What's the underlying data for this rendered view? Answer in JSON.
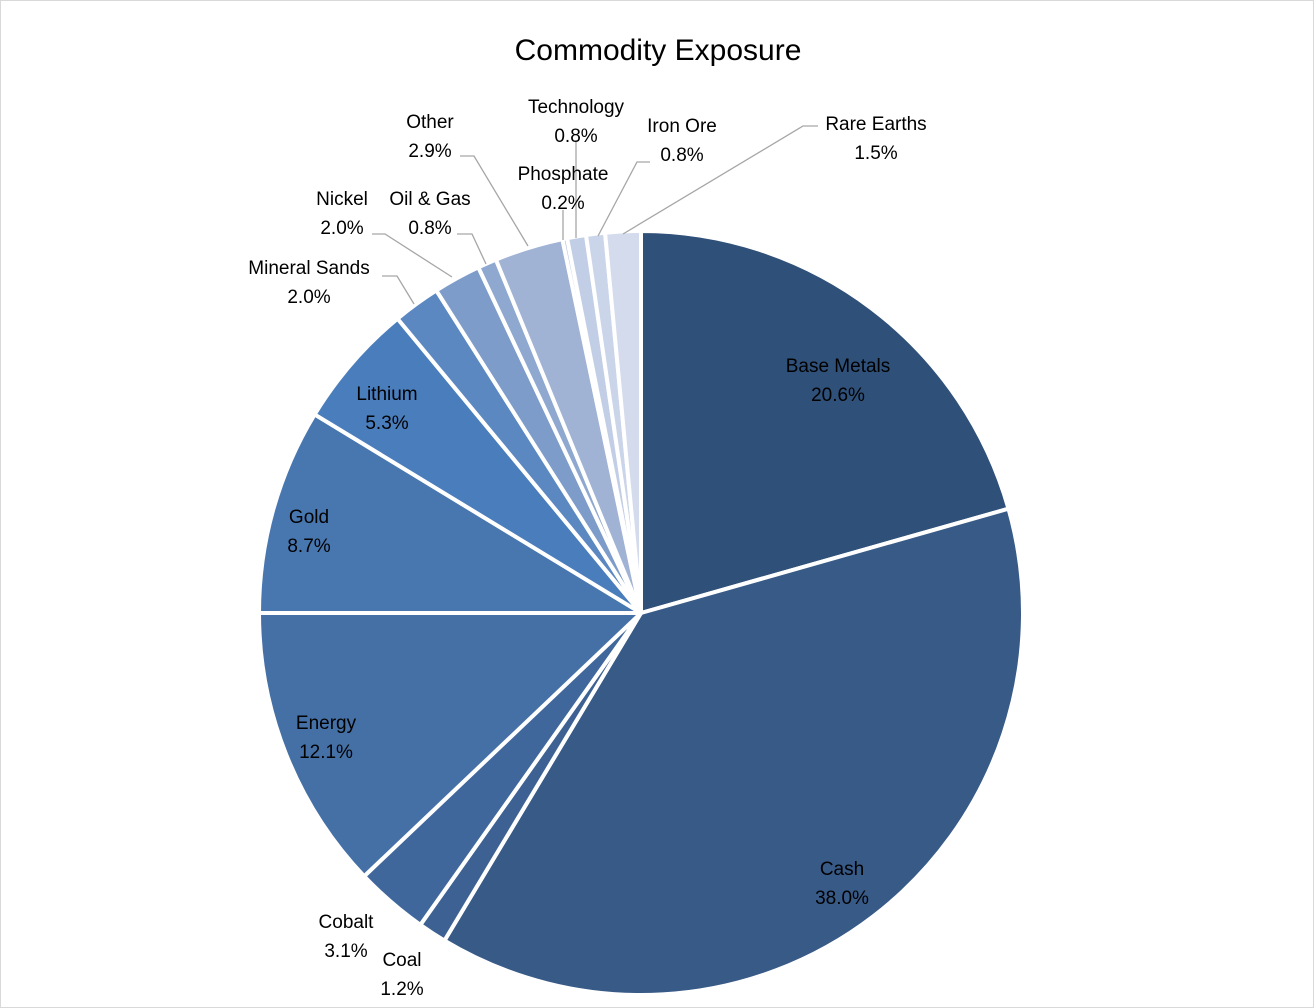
{
  "chart_data": {
    "type": "pie",
    "title": "Commodity Exposure",
    "start_angle_deg": 0,
    "direction": "clockwise",
    "slices": [
      {
        "name": "Base Metals",
        "value_label": "20.6%",
        "value": 20.6,
        "color": "#2f5078"
      },
      {
        "name": "Cash",
        "value_label": "38.0%",
        "value": 38.0,
        "color": "#385a87"
      },
      {
        "name": "Coal",
        "value_label": "1.2%",
        "value": 1.2,
        "color": "#3d6192"
      },
      {
        "name": "Cobalt",
        "value_label": "3.1%",
        "value": 3.1,
        "color": "#40679b"
      },
      {
        "name": "Energy",
        "value_label": "12.1%",
        "value": 12.1,
        "color": "#4570a6"
      },
      {
        "name": "Gold",
        "value_label": "8.7%",
        "value": 8.7,
        "color": "#4877b0"
      },
      {
        "name": "Lithium",
        "value_label": "5.3%",
        "value": 5.3,
        "color": "#4a7dbb"
      },
      {
        "name": "Mineral Sands",
        "value_label": "2.0%",
        "value": 2.0,
        "color": "#5b88c1"
      },
      {
        "name": "Nickel",
        "value_label": "2.0%",
        "value": 2.0,
        "color": "#7e9cc9"
      },
      {
        "name": "Oil & Gas",
        "value_label": "0.8%",
        "value": 0.8,
        "color": "#8ea8d0"
      },
      {
        "name": "Other",
        "value_label": "2.9%",
        "value": 2.9,
        "color": "#a0b3d5"
      },
      {
        "name": "Phosphate",
        "value_label": "0.2%",
        "value": 0.2,
        "color": "#b3c2de"
      },
      {
        "name": "Technology",
        "value_label": "0.8%",
        "value": 0.8,
        "color": "#c2cee5"
      },
      {
        "name": "Iron Ore",
        "value_label": "0.8%",
        "value": 0.8,
        "color": "#cbd5e9"
      },
      {
        "name": "Rare Earths",
        "value_label": "1.5%",
        "value": 1.5,
        "color": "#d3dbec"
      }
    ],
    "label_text_color": "#000000",
    "leader_line_color": "#a6a6a6",
    "slice_border_color": "#ffffff"
  }
}
